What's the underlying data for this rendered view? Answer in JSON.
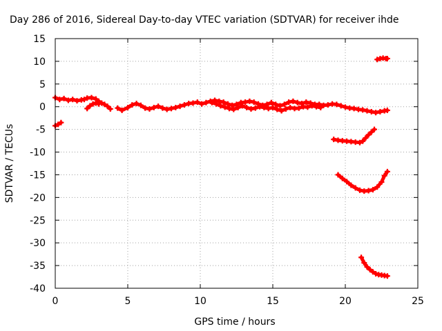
{
  "chart_data": {
    "type": "scatter",
    "title": "Day 286 of 2016, Sidereal Day-to-day VTEC variation (SDTVAR) for receiver ihde",
    "xlabel": "GPS time / hours",
    "ylabel": "SDTVAR / TECUs",
    "xlim": [
      0,
      25
    ],
    "ylim": [
      -40,
      15
    ],
    "x_ticks": [
      0,
      5,
      10,
      15,
      20,
      25
    ],
    "y_ticks": [
      -40,
      -35,
      -30,
      -25,
      -20,
      -15,
      -10,
      -5,
      0,
      5,
      10,
      15
    ],
    "grid": true,
    "legend": "none",
    "marker": "plus",
    "color": "#ff0000",
    "series": [
      {
        "values": [
          [
            0.0,
            2.0
          ],
          [
            0.3,
            1.6
          ],
          [
            0.6,
            1.8
          ],
          [
            0.9,
            1.4
          ],
          [
            1.2,
            1.6
          ],
          [
            1.5,
            1.3
          ],
          [
            1.8,
            1.5
          ],
          [
            2.0,
            1.6
          ],
          [
            2.2,
            1.9
          ],
          [
            2.5,
            2.0
          ],
          [
            2.8,
            1.7
          ],
          [
            3.0,
            1.2
          ],
          [
            3.2,
            0.8
          ],
          [
            3.4,
            0.5
          ],
          [
            3.6,
            0.1
          ],
          [
            3.8,
            -0.5
          ]
        ]
      },
      {
        "values": [
          [
            0.0,
            -4.2
          ],
          [
            0.2,
            -3.9
          ],
          [
            0.4,
            -3.5
          ]
        ]
      },
      {
        "values": [
          [
            2.2,
            -0.4
          ],
          [
            2.4,
            0.2
          ],
          [
            2.6,
            0.6
          ],
          [
            2.8,
            0.8
          ],
          [
            3.0,
            0.6
          ]
        ]
      },
      {
        "values": [
          [
            4.3,
            -0.3
          ],
          [
            4.6,
            -0.8
          ],
          [
            5.0,
            -0.2
          ],
          [
            5.3,
            0.4
          ],
          [
            5.6,
            0.7
          ],
          [
            5.9,
            0.3
          ],
          [
            6.2,
            -0.3
          ],
          [
            6.5,
            -0.5
          ],
          [
            6.8,
            -0.2
          ],
          [
            7.1,
            0.1
          ],
          [
            7.4,
            -0.3
          ],
          [
            7.7,
            -0.6
          ],
          [
            8.0,
            -0.4
          ],
          [
            8.3,
            -0.2
          ],
          [
            8.6,
            0.1
          ],
          [
            8.9,
            0.4
          ],
          [
            9.2,
            0.7
          ],
          [
            9.5,
            0.8
          ],
          [
            9.8,
            1.0
          ],
          [
            10.1,
            0.6
          ],
          [
            10.4,
            0.9
          ],
          [
            10.7,
            1.2
          ],
          [
            11.0,
            1.4
          ],
          [
            11.3,
            1.2
          ],
          [
            11.6,
            1.0
          ],
          [
            11.9,
            0.6
          ],
          [
            12.2,
            0.3
          ],
          [
            12.5,
            0.5
          ],
          [
            12.8,
            0.9
          ],
          [
            13.1,
            1.0
          ],
          [
            13.4,
            1.2
          ],
          [
            13.7,
            1.0
          ],
          [
            14.0,
            0.6
          ],
          [
            14.3,
            0.3
          ],
          [
            14.6,
            0.5
          ],
          [
            14.9,
            0.9
          ],
          [
            15.2,
            0.5
          ],
          [
            15.5,
            0.2
          ],
          [
            15.8,
            0.5
          ],
          [
            16.1,
            1.0
          ],
          [
            16.4,
            1.2
          ],
          [
            16.7,
            0.9
          ],
          [
            17.0,
            0.7
          ],
          [
            17.3,
            1.0
          ],
          [
            17.6,
            0.8
          ],
          [
            17.9,
            0.5
          ],
          [
            18.2,
            0.5
          ],
          [
            18.5,
            0.3
          ],
          [
            18.8,
            0.4
          ],
          [
            19.1,
            0.6
          ],
          [
            19.4,
            0.5
          ],
          [
            19.7,
            0.2
          ],
          [
            20.0,
            -0.1
          ],
          [
            20.3,
            -0.3
          ],
          [
            20.6,
            -0.4
          ],
          [
            20.9,
            -0.6
          ],
          [
            21.2,
            -0.7
          ],
          [
            21.5,
            -0.9
          ],
          [
            21.8,
            -1.1
          ],
          [
            22.1,
            -1.3
          ],
          [
            22.4,
            -1.1
          ],
          [
            22.7,
            -0.9
          ],
          [
            22.9,
            -0.8
          ]
        ]
      },
      {
        "values": [
          [
            10.8,
            0.9
          ],
          [
            11.1,
            0.6
          ],
          [
            11.4,
            0.2
          ],
          [
            11.7,
            -0.1
          ],
          [
            12.0,
            -0.4
          ],
          [
            12.3,
            -0.6
          ],
          [
            12.6,
            -0.2
          ],
          [
            12.9,
            0.2
          ],
          [
            13.2,
            -0.2
          ],
          [
            13.5,
            -0.5
          ],
          [
            13.8,
            -0.3
          ],
          [
            14.1,
            0.0
          ],
          [
            14.4,
            -0.2
          ],
          [
            14.7,
            -0.4
          ],
          [
            15.0,
            -0.2
          ],
          [
            15.3,
            -0.6
          ],
          [
            15.6,
            -0.9
          ],
          [
            15.9,
            -0.5
          ],
          [
            16.2,
            -0.2
          ],
          [
            16.5,
            -0.4
          ],
          [
            16.8,
            -0.3
          ],
          [
            17.1,
            0.0
          ],
          [
            17.4,
            -0.1
          ],
          [
            17.7,
            0.2
          ],
          [
            18.0,
            0.0
          ],
          [
            18.3,
            -0.2
          ]
        ]
      },
      {
        "values": [
          [
            19.2,
            -7.2
          ],
          [
            19.5,
            -7.4
          ],
          [
            19.8,
            -7.5
          ],
          [
            20.1,
            -7.6
          ],
          [
            20.4,
            -7.7
          ],
          [
            20.7,
            -7.8
          ],
          [
            21.0,
            -7.9
          ],
          [
            21.2,
            -7.6
          ],
          [
            21.4,
            -6.9
          ],
          [
            21.6,
            -6.2
          ],
          [
            21.8,
            -5.6
          ],
          [
            22.0,
            -5.0
          ]
        ]
      },
      {
        "values": [
          [
            19.5,
            -15.0
          ],
          [
            19.8,
            -15.8
          ],
          [
            20.1,
            -16.5
          ],
          [
            20.4,
            -17.3
          ],
          [
            20.7,
            -17.9
          ],
          [
            21.0,
            -18.4
          ],
          [
            21.3,
            -18.6
          ],
          [
            21.6,
            -18.5
          ],
          [
            21.9,
            -18.3
          ],
          [
            22.2,
            -17.7
          ],
          [
            22.5,
            -16.6
          ],
          [
            22.7,
            -15.2
          ],
          [
            22.9,
            -14.3
          ]
        ]
      },
      {
        "values": [
          [
            21.1,
            -33.2
          ],
          [
            21.3,
            -34.4
          ],
          [
            21.5,
            -35.3
          ],
          [
            21.7,
            -35.9
          ],
          [
            21.9,
            -36.4
          ],
          [
            22.1,
            -36.8
          ],
          [
            22.3,
            -37.0
          ],
          [
            22.5,
            -37.1
          ],
          [
            22.7,
            -37.2
          ],
          [
            22.9,
            -37.3
          ]
        ]
      },
      {
        "values": [
          [
            22.2,
            10.4
          ],
          [
            22.4,
            10.6
          ],
          [
            22.6,
            10.7
          ],
          [
            22.8,
            10.6
          ],
          [
            22.9,
            10.6
          ]
        ]
      }
    ]
  }
}
